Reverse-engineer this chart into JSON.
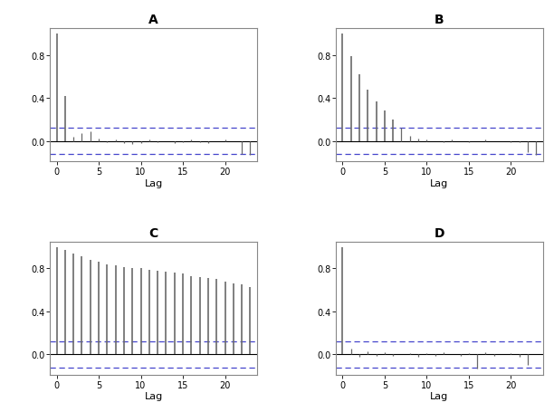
{
  "title_A": "A",
  "title_B": "B",
  "title_C": "C",
  "title_D": "D",
  "xlabel": "Lag",
  "acf_A": [
    1.0,
    0.42,
    0.04,
    0.07,
    0.09,
    0.02,
    -0.01,
    0.01,
    -0.02,
    -0.03,
    -0.02,
    0.01,
    -0.01,
    0.0,
    -0.02,
    -0.01,
    0.01,
    -0.01,
    -0.02,
    0.0,
    0.01,
    0.0,
    -0.12,
    -0.13
  ],
  "acf_B": [
    1.0,
    0.79,
    0.62,
    0.48,
    0.37,
    0.28,
    0.2,
    0.12,
    0.05,
    0.02,
    0.01,
    0.0,
    -0.01,
    0.01,
    0.0,
    -0.01,
    0.0,
    0.01,
    0.0,
    0.0,
    -0.01,
    -0.01,
    -0.1,
    -0.13
  ],
  "acf_C": [
    1.0,
    0.97,
    0.94,
    0.91,
    0.88,
    0.86,
    0.84,
    0.83,
    0.81,
    0.8,
    0.8,
    0.79,
    0.78,
    0.77,
    0.76,
    0.75,
    0.73,
    0.72,
    0.71,
    0.7,
    0.68,
    0.66,
    0.65,
    0.63
  ],
  "acf_D": [
    1.0,
    0.05,
    -0.02,
    0.03,
    -0.01,
    0.02,
    -0.01,
    0.0,
    0.01,
    -0.02,
    0.01,
    -0.01,
    0.02,
    0.0,
    -0.01,
    0.01,
    -0.13,
    0.02,
    -0.01,
    0.0,
    0.01,
    -0.02,
    -0.1,
    0.0
  ],
  "bar_color": "#696969",
  "conf_color": "#4444cc",
  "hline_color": "#000000",
  "ylim_low": -0.19,
  "ylim_high": 1.05,
  "yticks": [
    0.0,
    0.4,
    0.8
  ],
  "conf_val": 0.12,
  "xticks": [
    0,
    5,
    10,
    15,
    20
  ],
  "background_color": "#ffffff"
}
